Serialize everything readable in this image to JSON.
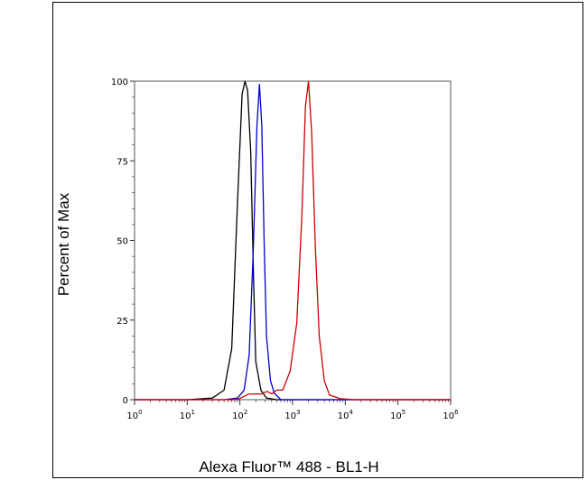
{
  "chart_data": {
    "type": "line",
    "xlabel": "Alexa Fluor™ 488 - BL1-H",
    "ylabel": "Percent of Max",
    "x_scale": "log",
    "xlim": [
      1,
      1000000
    ],
    "ylim": [
      0,
      100
    ],
    "x_ticks": [
      {
        "value": 1,
        "base": "10",
        "exp": "0"
      },
      {
        "value": 10,
        "base": "10",
        "exp": "1"
      },
      {
        "value": 100,
        "base": "10",
        "exp": "2"
      },
      {
        "value": 1000,
        "base": "10",
        "exp": "3"
      },
      {
        "value": 10000,
        "base": "10",
        "exp": "4"
      },
      {
        "value": 100000,
        "base": "10",
        "exp": "5"
      },
      {
        "value": 1000000,
        "base": "10",
        "exp": "6"
      }
    ],
    "y_ticks": [
      "0",
      "25",
      "50",
      "75",
      "100"
    ],
    "grid": false,
    "legend": "none",
    "series": [
      {
        "color": "#000000",
        "x": [
          1,
          10,
          30,
          50,
          70,
          90,
          110,
          125,
          140,
          160,
          180,
          200,
          250,
          320,
          500,
          1000000
        ],
        "y": [
          0,
          0,
          0.5,
          3,
          16,
          62,
          96,
          100,
          97,
          78,
          40,
          12,
          3,
          0.5,
          0,
          0
        ]
      },
      {
        "color": "#0000cc",
        "x": [
          1,
          50,
          90,
          120,
          150,
          180,
          210,
          235,
          260,
          290,
          320,
          380,
          450,
          600,
          1000000
        ],
        "y": [
          0,
          0,
          0.5,
          3,
          14,
          48,
          86,
          99,
          86,
          48,
          20,
          6,
          2,
          0,
          0
        ]
      },
      {
        "color": "#cc0000",
        "x": [
          1,
          80,
          100,
          150,
          250,
          330,
          400,
          500,
          650,
          900,
          1200,
          1500,
          1750,
          2000,
          2300,
          2700,
          3200,
          4000,
          5000,
          8000,
          15000,
          1000000
        ],
        "y": [
          0,
          0,
          0.4,
          1.8,
          1.8,
          2.6,
          1.8,
          3,
          3,
          9,
          24,
          58,
          92,
          100,
          84,
          48,
          20,
          6,
          1.5,
          0.3,
          0,
          0
        ]
      }
    ]
  }
}
